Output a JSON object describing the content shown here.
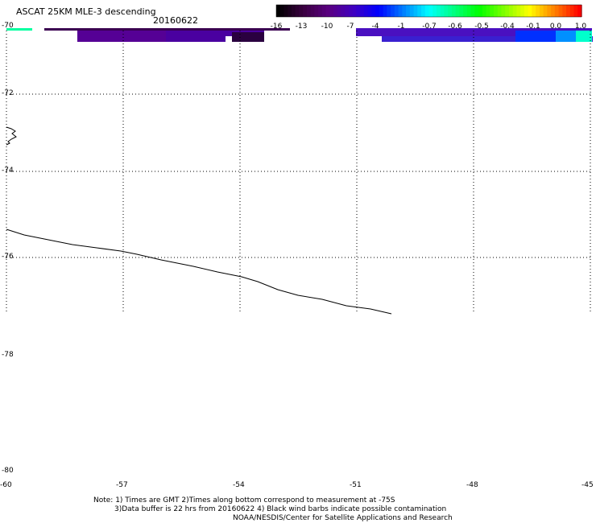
{
  "title": "ASCAT 25KM MLE-3 descending",
  "date": "20160622",
  "colorbar": {
    "labels": [
      "-16",
      "-13",
      "-10",
      "-7",
      "-4",
      "-1",
      "-0.7",
      "-0.6",
      "-0.5",
      "-0.4",
      "-0.1",
      "0.0",
      "1.0"
    ],
    "colors": [
      "#000000",
      "#3a0040",
      "#5a0080",
      "#4000c0",
      "#0000ff",
      "#0080ff",
      "#00ffff",
      "#00ff80",
      "#00ff00",
      "#80ff00",
      "#ffff00",
      "#ff8000",
      "#ff0000"
    ]
  },
  "axes": {
    "lat_labels": [
      "-70",
      "-72",
      "-74",
      "-76",
      "-78",
      "-80"
    ],
    "lon_labels": [
      "-60",
      "-57",
      "-54",
      "-51",
      "-48",
      "-45"
    ]
  },
  "notes": {
    "line1": "Note: 1) Times are GMT 2)Times along bottom correspond to measurement at -75S",
    "line2": "3)Data buffer is 22 hrs from 20160622 4) Black wind barbs indicate possible contamination",
    "line3": "NOAA/NESDIS/Center for Satellite Applications and Research"
  }
}
